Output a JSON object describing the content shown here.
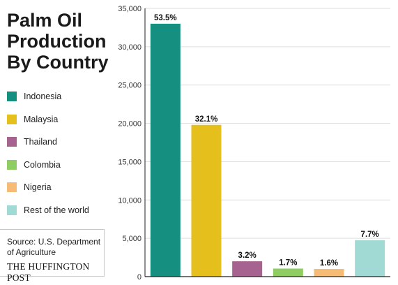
{
  "title_lines": [
    "Palm Oil",
    "Production",
    "By Country"
  ],
  "source": {
    "text_line1": "Source: U.S. Department",
    "text_line2": "of Agriculture",
    "brand": "THE HUFFINGTON POST"
  },
  "chart_data": {
    "type": "bar",
    "title": "Palm Oil Production By Country",
    "categories": [
      "Indonesia",
      "Malaysia",
      "Thailand",
      "Colombia",
      "Nigeria",
      "Rest of the world"
    ],
    "values": [
      33000,
      19800,
      2000,
      1050,
      1000,
      4750
    ],
    "data_labels": [
      "53.5%",
      "32.1%",
      "3.2%",
      "1.7%",
      "1.6%",
      "7.7%"
    ],
    "colors": [
      "#148f80",
      "#e5c01c",
      "#a6638f",
      "#8fcd63",
      "#f6bb74",
      "#a1d9d4"
    ],
    "xlabel": "",
    "ylabel": "",
    "ylim": [
      0,
      35000
    ],
    "yticks": [
      0,
      5000,
      10000,
      15000,
      20000,
      25000,
      30000,
      35000
    ],
    "ytick_labels": [
      "0",
      "5,000",
      "10,000",
      "15,000",
      "20,000",
      "25,000",
      "30,000",
      "35,000"
    ],
    "grid": true,
    "legend_placement": "left"
  }
}
